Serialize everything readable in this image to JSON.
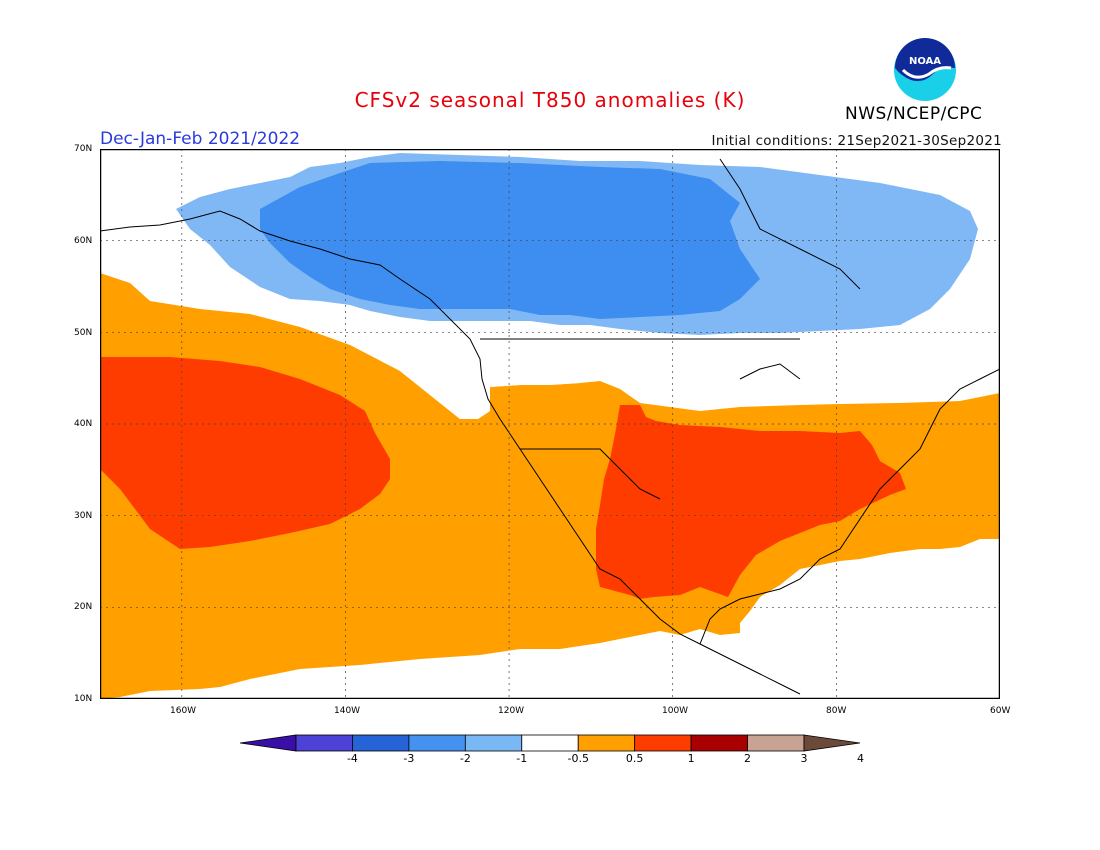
{
  "title": "CFSv2 seasonal T850 anomalies (K)",
  "season": "Dec-Jan-Feb 2021/2022",
  "initial_conditions": "Initial conditions: 21Sep2021-30Sep2021",
  "agency": "NWS/NCEP/CPC",
  "logo_text": "NOAA",
  "logo_icon": "noaa-logo",
  "lat_labels": [
    "70N",
    "60N",
    "50N",
    "40N",
    "30N",
    "20N",
    "10N"
  ],
  "lon_labels": [
    "160W",
    "140W",
    "120W",
    "100W",
    "80W",
    "60W"
  ],
  "colorbar": {
    "labels": [
      "-4",
      "-3",
      "-2",
      "-1",
      "-0.5",
      "0.5",
      "1",
      "2",
      "3",
      "4"
    ],
    "colors": [
      "#3a0fa8",
      "#4d41d6",
      "#2563d6",
      "#4591ef",
      "#7ab8f5",
      "#ffffff",
      "#ffa000",
      "#ff3c00",
      "#a80000",
      "#c8a292",
      "#6b4a3a"
    ]
  },
  "anomaly_colors": {
    "cold_2": "#3d8ef0",
    "cold_1": "#80b8f5",
    "warm_1": "#ffa000",
    "warm_2": "#ff3c00"
  }
}
